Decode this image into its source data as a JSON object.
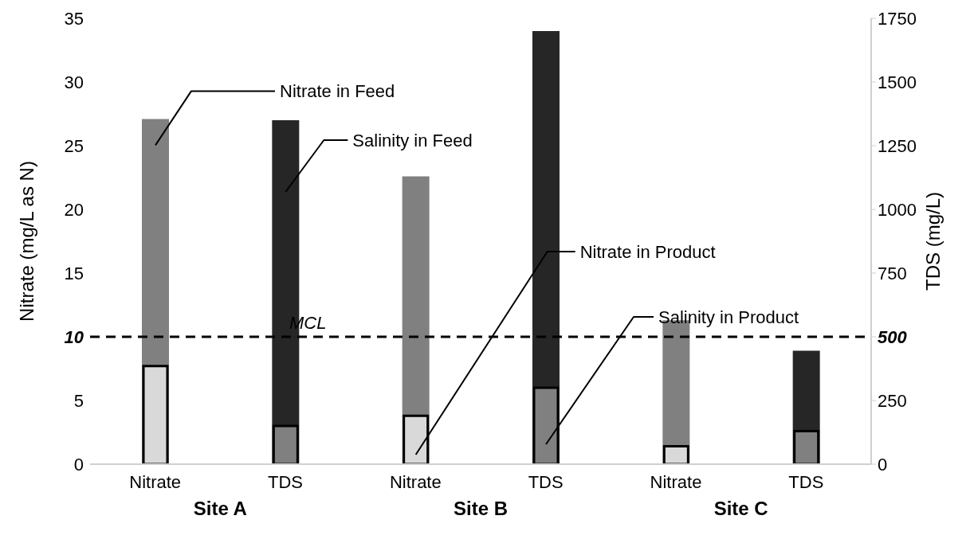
{
  "chart_data": {
    "type": "bar",
    "categories": [
      "Nitrate",
      "TDS",
      "Nitrate",
      "TDS",
      "Nitrate",
      "TDS"
    ],
    "ylabel": "Nitrate (mg/L as N)",
    "y2label": "TDS (mg/L)",
    "ylim": [
      0,
      35
    ],
    "yticks": [
      0,
      5,
      10,
      15,
      20,
      25,
      30,
      35
    ],
    "y2lim": [
      0,
      1750
    ],
    "y2ticks": [
      0,
      250,
      500,
      750,
      1000,
      1250,
      1500,
      1750
    ],
    "series": [
      {
        "name": "Nitrate in Feed",
        "color": "#808080",
        "values": [
          27.1,
          null,
          22.6,
          null,
          11.3,
          null
        ]
      },
      {
        "name": "Salinity in Feed",
        "color": "#262626",
        "axis": "y2",
        "values": [
          null,
          1350,
          null,
          1700,
          null,
          445
        ]
      },
      {
        "name": "Nitrate in Product",
        "color": "#d9d9d9",
        "values": [
          7.7,
          null,
          3.8,
          null,
          1.4,
          null
        ]
      },
      {
        "name": "Salinity in Product",
        "color": "#808080",
        "axis": "y2",
        "values": [
          null,
          150,
          null,
          300,
          null,
          130
        ]
      }
    ],
    "ref_lines": [
      {
        "axis": "y",
        "value": 10,
        "label": "MCL",
        "color": "#000000",
        "line_style": "dashed"
      }
    ],
    "annotations": [
      "Site A",
      "Site B",
      "Site C"
    ],
    "grid": false,
    "legend": false
  }
}
